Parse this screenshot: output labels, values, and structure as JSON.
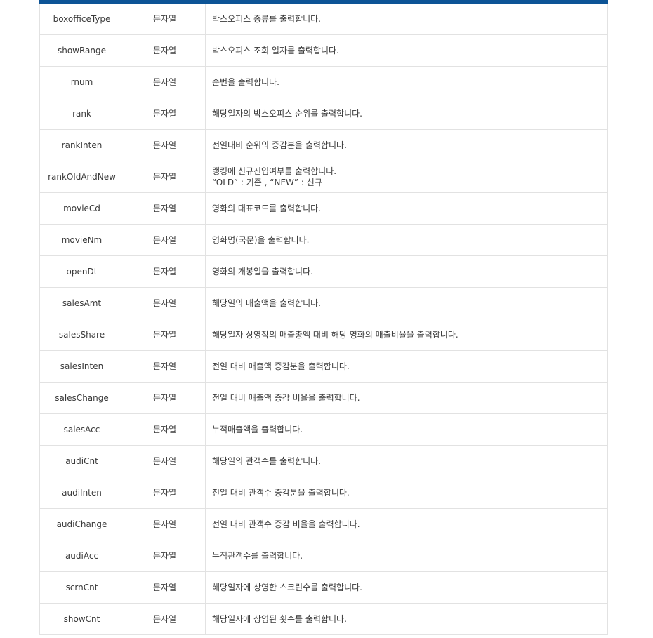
{
  "rows": [
    {
      "name": "boxofficeType",
      "type": "문자열",
      "desc": [
        "박스오피스 종류를 출력합니다."
      ]
    },
    {
      "name": "showRange",
      "type": "문자열",
      "desc": [
        "박스오피스 조회 일자를 출력합니다."
      ]
    },
    {
      "name": "rnum",
      "type": "문자열",
      "desc": [
        "순번을 출력합니다."
      ]
    },
    {
      "name": "rank",
      "type": "문자열",
      "desc": [
        "해당일자의 박스오피스 순위를 출력합니다."
      ]
    },
    {
      "name": "rankInten",
      "type": "문자열",
      "desc": [
        "전일대비 순위의 증감분을 출력합니다."
      ]
    },
    {
      "name": "rankOldAndNew",
      "type": "문자열",
      "desc": [
        "랭킹에 신규진입여부를 출력합니다.",
        "“OLD” : 기존 , “NEW” : 신규"
      ]
    },
    {
      "name": "movieCd",
      "type": "문자열",
      "desc": [
        "영화의 대표코드를 출력합니다."
      ]
    },
    {
      "name": "movieNm",
      "type": "문자열",
      "desc": [
        "영화명(국문)을 출력합니다."
      ]
    },
    {
      "name": "openDt",
      "type": "문자열",
      "desc": [
        "영화의 개봉일을 출력합니다."
      ]
    },
    {
      "name": "salesAmt",
      "type": "문자열",
      "desc": [
        "해당일의 매출액을 출력합니다."
      ]
    },
    {
      "name": "salesShare",
      "type": "문자열",
      "desc": [
        "해당일자 상영작의 매출총액 대비 해당 영화의 매출비율을 출력합니다."
      ]
    },
    {
      "name": "salesInten",
      "type": "문자열",
      "desc": [
        "전일 대비 매출액 증감분을 출력합니다."
      ]
    },
    {
      "name": "salesChange",
      "type": "문자열",
      "desc": [
        "전일 대비 매출액 증감 비율을 출력합니다."
      ]
    },
    {
      "name": "salesAcc",
      "type": "문자열",
      "desc": [
        "누적매출액을 출력합니다."
      ]
    },
    {
      "name": "audiCnt",
      "type": "문자열",
      "desc": [
        "해당일의 관객수를 출력합니다."
      ]
    },
    {
      "name": "audiInten",
      "type": "문자열",
      "desc": [
        "전일 대비 관객수 증감분을 출력합니다."
      ]
    },
    {
      "name": "audiChange",
      "type": "문자열",
      "desc": [
        "전일 대비 관객수 증감 비율을 출력합니다."
      ]
    },
    {
      "name": "audiAcc",
      "type": "문자열",
      "desc": [
        "누적관객수를 출력합니다."
      ]
    },
    {
      "name": "scrnCnt",
      "type": "문자열",
      "desc": [
        "해당일자에 상영한 스크린수를 출력합니다."
      ]
    },
    {
      "name": "showCnt",
      "type": "문자열",
      "desc": [
        "해당일자에 상영된 횟수를 출력합니다."
      ]
    }
  ]
}
